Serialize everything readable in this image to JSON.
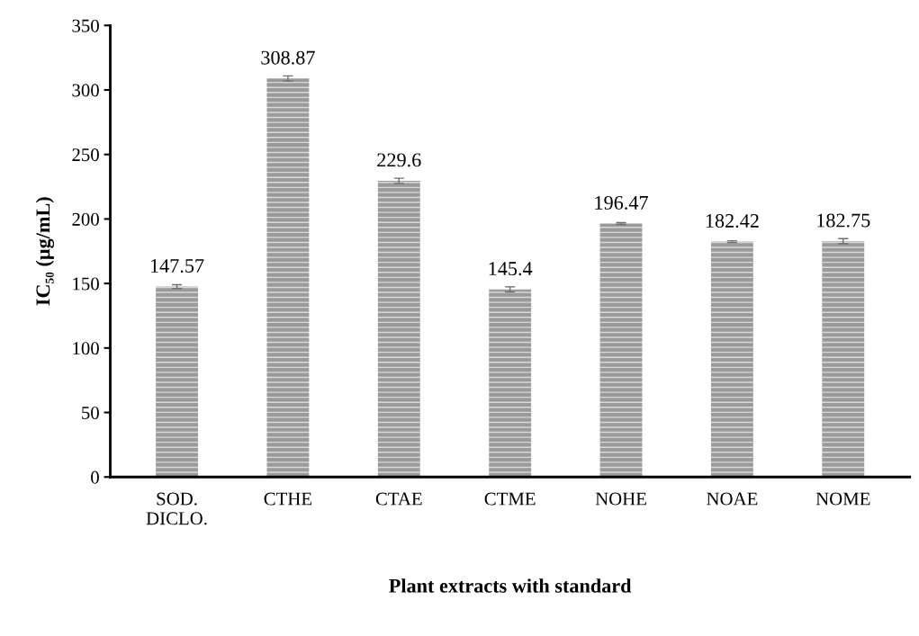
{
  "chart_data": {
    "type": "bar",
    "xlabel": "Plant extracts with standard",
    "ylabel": "IC₅₀ (µg/mL)",
    "categories": [
      "SOD.\nDICLO.",
      "CTHE",
      "CTAE",
      "CTME",
      "NOHE",
      "NOAE",
      "NOME"
    ],
    "series": [
      {
        "color": "#9a9a9a",
        "values": [
          147.57,
          308.87,
          229.6,
          145.4,
          196.47,
          182.42,
          182.75
        ],
        "errors": [
          1.5,
          2,
          2,
          2,
          0.7,
          0.7,
          2
        ]
      }
    ],
    "data_labels": true,
    "ylim": [
      0,
      350
    ],
    "yticks": [
      0,
      50,
      100,
      150,
      200,
      250,
      300,
      350
    ],
    "grid": false
  }
}
